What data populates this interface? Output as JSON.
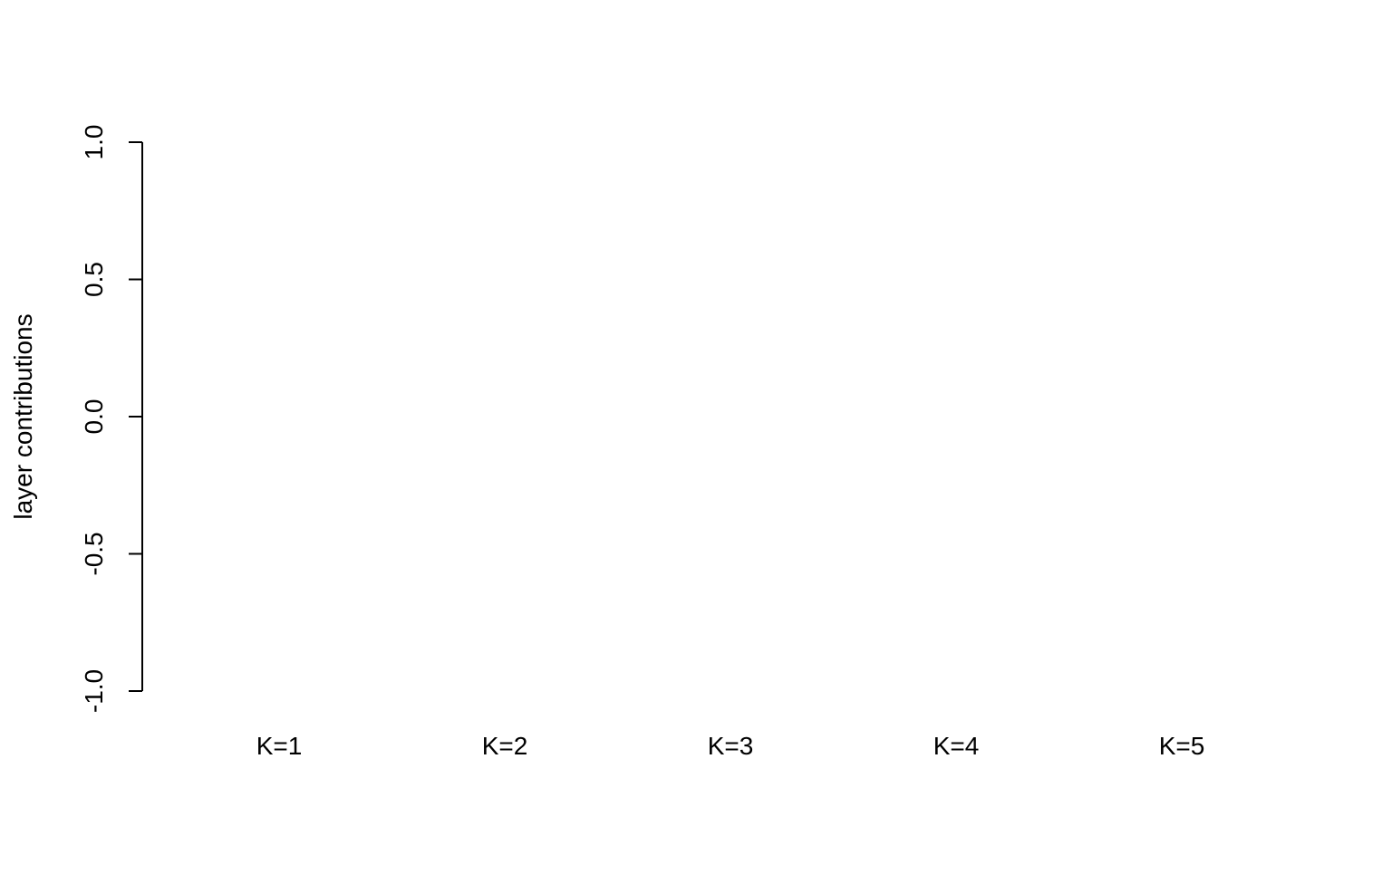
{
  "chart_data": {
    "type": "bar",
    "title": "",
    "xlabel": "",
    "ylabel": "layer contributions",
    "categories": [
      "K=1",
      "K=2",
      "K=3",
      "K=4",
      "K=5"
    ],
    "series": [],
    "ylim": [
      -1.0,
      1.0
    ],
    "yticks": [
      "-1.0",
      "-0.5",
      "0.0",
      "0.5",
      "1.0"
    ],
    "grid": false,
    "legend": "none",
    "colors": {
      "axis": "#000000",
      "background": "#ffffff"
    }
  }
}
